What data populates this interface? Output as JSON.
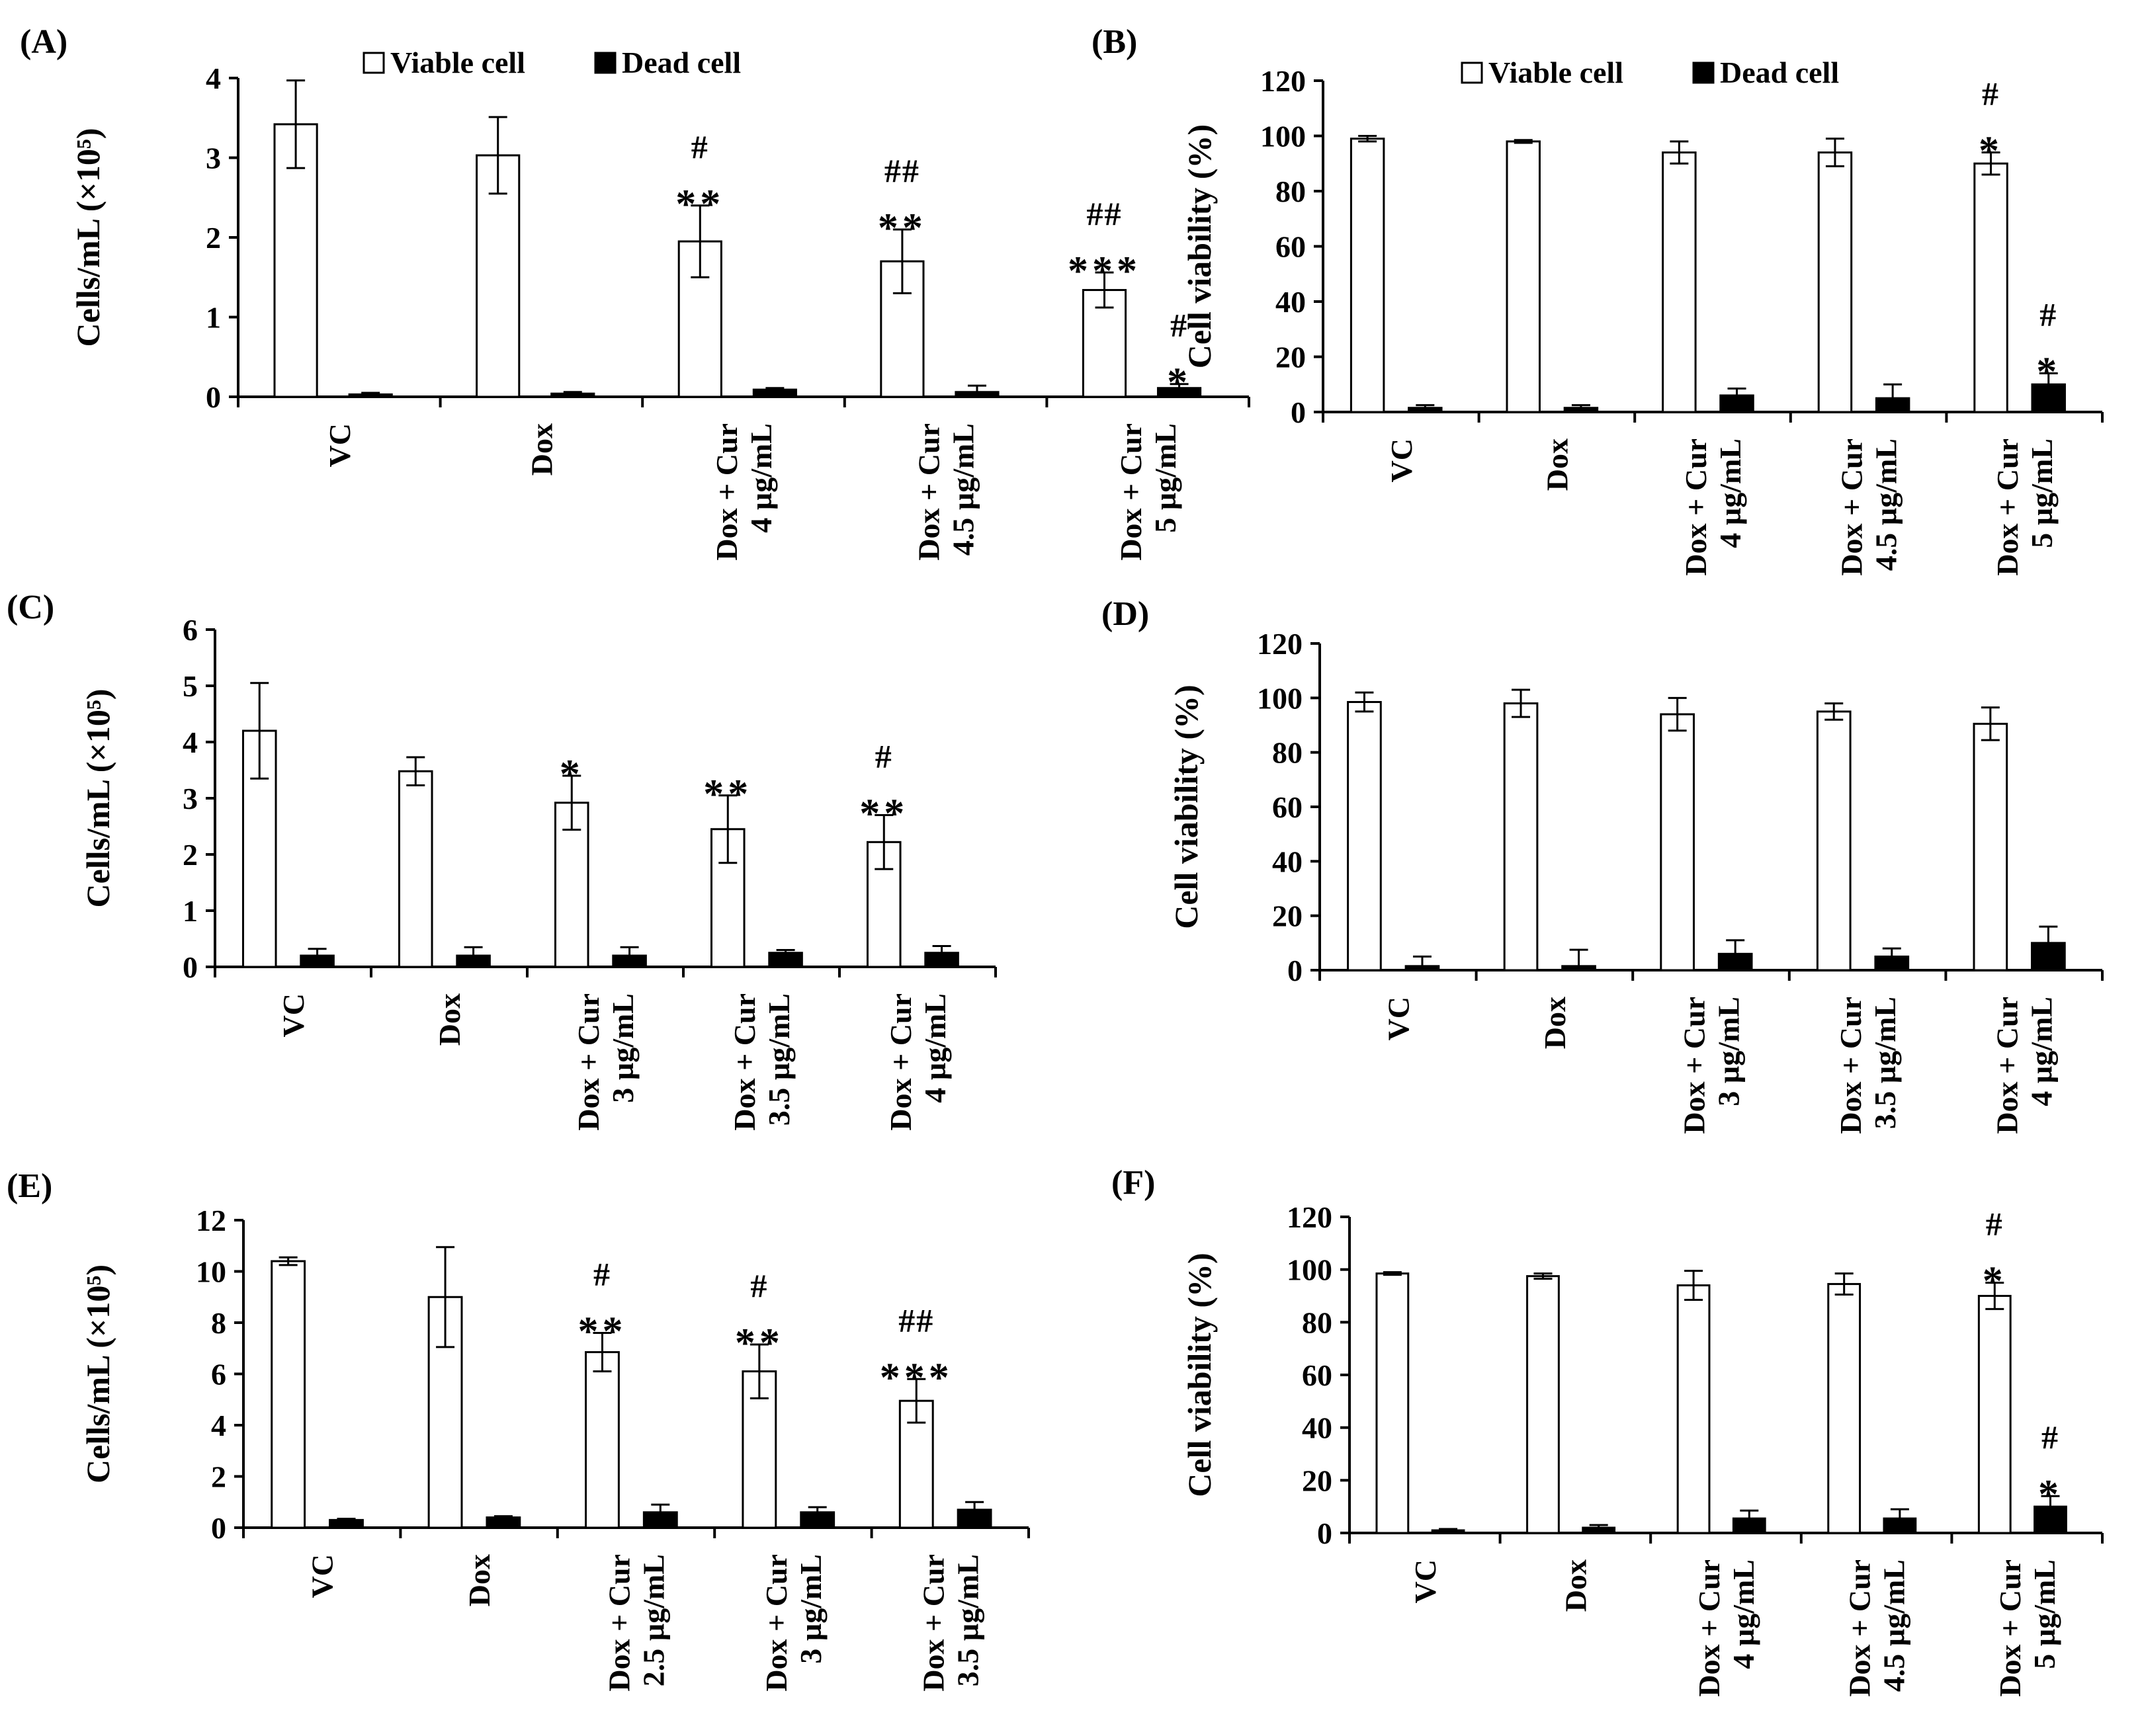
{
  "chart_data": [
    {
      "panel": "(A)",
      "type": "bar",
      "ylabel": "Cells/mL (×10⁵)",
      "ylim": [
        0,
        4
      ],
      "yticks": [
        "0",
        "1",
        "2",
        "3",
        "4"
      ],
      "categories": [
        [
          "VC"
        ],
        [
          "Dox"
        ],
        [
          "Dox + Cur",
          "4 µg/mL"
        ],
        [
          "Dox + Cur",
          "4.5 µg/mL"
        ],
        [
          "Dox + Cur",
          "5 µg/mL"
        ]
      ],
      "legend": [
        "Viable cell",
        "Dead cell"
      ],
      "series": [
        {
          "name": "Viable cell",
          "values": [
            3.42,
            3.03,
            1.95,
            1.7,
            1.34
          ],
          "errors": [
            0.55,
            0.48,
            0.45,
            0.4,
            0.22
          ],
          "annotations": [
            [],
            [],
            [
              "**",
              "#"
            ],
            [
              "**",
              "##"
            ],
            [
              "***",
              "##"
            ]
          ]
        },
        {
          "name": "Dead cell",
          "values": [
            0.03,
            0.04,
            0.09,
            0.06,
            0.11
          ],
          "errors": [
            0.02,
            0.02,
            0.02,
            0.08,
            0.05
          ],
          "annotations": [
            [],
            [],
            [],
            [],
            [
              "*",
              "#"
            ]
          ]
        }
      ]
    },
    {
      "panel": "(B)",
      "type": "bar",
      "ylabel": "Cell viability (%)",
      "ylim": [
        0,
        120
      ],
      "yticks": [
        "0",
        "20",
        "40",
        "60",
        "80",
        "100",
        "120"
      ],
      "categories": [
        [
          "VC"
        ],
        [
          "Dox"
        ],
        [
          "Dox + Cur",
          "4 µg/mL"
        ],
        [
          "Dox + Cur",
          "4.5 µg/mL"
        ],
        [
          "Dox + Cur",
          "5 µg/mL"
        ]
      ],
      "legend": [
        "Viable cell",
        "Dead cell"
      ],
      "series": [
        {
          "name": "Viable cell",
          "values": [
            99,
            98,
            94,
            94,
            90
          ],
          "errors": [
            1,
            0.5,
            4,
            5,
            4
          ],
          "annotations": [
            [],
            [],
            [],
            [],
            [
              "*",
              "#"
            ]
          ]
        },
        {
          "name": "Dead cell",
          "values": [
            1.5,
            1.5,
            6,
            5,
            10
          ],
          "errors": [
            1,
            1,
            2.5,
            5,
            4
          ],
          "annotations": [
            [],
            [],
            [],
            [],
            [
              "*",
              "#"
            ]
          ]
        }
      ]
    },
    {
      "panel": "(C)",
      "type": "bar",
      "ylabel": "Cells/mL (×10⁵)",
      "ylim": [
        0,
        6
      ],
      "yticks": [
        "0",
        "1",
        "2",
        "3",
        "4",
        "5",
        "6"
      ],
      "categories": [
        [
          "VC"
        ],
        [
          "Dox"
        ],
        [
          "Dox + Cur",
          "3 µg/mL"
        ],
        [
          "Dox + Cur",
          "3.5 µg/mL"
        ],
        [
          "Dox + Cur",
          "4 µg/mL"
        ]
      ],
      "legend": [],
      "series": [
        {
          "name": "Viable cell",
          "values": [
            4.2,
            3.48,
            2.92,
            2.45,
            2.22
          ],
          "errors": [
            0.85,
            0.25,
            0.48,
            0.6,
            0.48
          ],
          "annotations": [
            [],
            [],
            [
              "*"
            ],
            [
              "**"
            ],
            [
              "**",
              "#"
            ]
          ]
        },
        {
          "name": "Dead cell",
          "values": [
            0.2,
            0.2,
            0.2,
            0.25,
            0.25
          ],
          "errors": [
            0.12,
            0.15,
            0.15,
            0.05,
            0.12
          ],
          "annotations": [
            [],
            [],
            [],
            [],
            []
          ]
        }
      ]
    },
    {
      "panel": "(D)",
      "type": "bar",
      "ylabel": "Cell viability (%)",
      "ylim": [
        0,
        120
      ],
      "yticks": [
        "0",
        "20",
        "40",
        "60",
        "80",
        "100",
        "120"
      ],
      "categories": [
        [
          "VC"
        ],
        [
          "Dox"
        ],
        [
          "Dox + Cur",
          "3 µg/mL"
        ],
        [
          "Dox + Cur",
          "3.5 µg/mL"
        ],
        [
          "Dox + Cur",
          "4 µg/mL"
        ]
      ],
      "legend": [],
      "series": [
        {
          "name": "Viable cell",
          "values": [
            98.5,
            98,
            94,
            95,
            90.5
          ],
          "errors": [
            3.5,
            5,
            6,
            3,
            6
          ],
          "annotations": [
            [],
            [],
            [],
            [],
            []
          ]
        },
        {
          "name": "Dead cell",
          "values": [
            1.5,
            1.5,
            6,
            5,
            10
          ],
          "errors": [
            3.5,
            6,
            5,
            3,
            6
          ],
          "annotations": [
            [],
            [],
            [],
            [],
            []
          ]
        }
      ]
    },
    {
      "panel": "(E)",
      "type": "bar",
      "ylabel": "Cells/mL (×10⁵)",
      "ylim": [
        0,
        12
      ],
      "yticks": [
        "0",
        "2",
        "4",
        "6",
        "8",
        "10",
        "12"
      ],
      "categories": [
        [
          "VC"
        ],
        [
          "Dox"
        ],
        [
          "Dox + Cur",
          "2.5 µg/mL"
        ],
        [
          "Dox + Cur",
          "3 µg/mL"
        ],
        [
          "Dox + Cur",
          "3.5 µg/mL"
        ]
      ],
      "legend": [],
      "series": [
        {
          "name": "Viable cell",
          "values": [
            10.4,
            9.0,
            6.85,
            6.1,
            4.95
          ],
          "errors": [
            0.15,
            1.95,
            0.75,
            1.05,
            0.85
          ],
          "annotations": [
            [],
            [],
            [
              "**",
              "#"
            ],
            [
              "**",
              "#"
            ],
            [
              "***",
              "##"
            ]
          ]
        },
        {
          "name": "Dead cell",
          "values": [
            0.3,
            0.4,
            0.6,
            0.6,
            0.7
          ],
          "errors": [
            0.05,
            0.05,
            0.3,
            0.2,
            0.3
          ],
          "annotations": [
            [],
            [],
            [],
            [],
            []
          ]
        }
      ]
    },
    {
      "panel": "(F)",
      "type": "bar",
      "ylabel": "Cell viability (%)",
      "ylim": [
        0,
        120
      ],
      "yticks": [
        "0",
        "20",
        "40",
        "60",
        "80",
        "100",
        "120"
      ],
      "categories": [
        [
          "VC"
        ],
        [
          "Dox"
        ],
        [
          "Dox + Cur",
          "4 µg/mL"
        ],
        [
          "Dox + Cur",
          "4.5 µg/mL"
        ],
        [
          "Dox + Cur",
          "5 µg/mL"
        ]
      ],
      "legend": [],
      "series": [
        {
          "name": "Viable cell",
          "values": [
            98.5,
            97.5,
            94,
            94.5,
            90
          ],
          "errors": [
            0.5,
            1,
            5.5,
            4,
            5
          ],
          "annotations": [
            [],
            [],
            [],
            [],
            [
              "*",
              "#"
            ]
          ]
        },
        {
          "name": "Dead cell",
          "values": [
            1,
            2,
            5.5,
            5.5,
            10
          ],
          "errors": [
            0.5,
            1,
            3,
            3.5,
            4
          ],
          "annotations": [
            [],
            [],
            [],
            [],
            [
              "*",
              "#"
            ]
          ]
        }
      ]
    }
  ]
}
